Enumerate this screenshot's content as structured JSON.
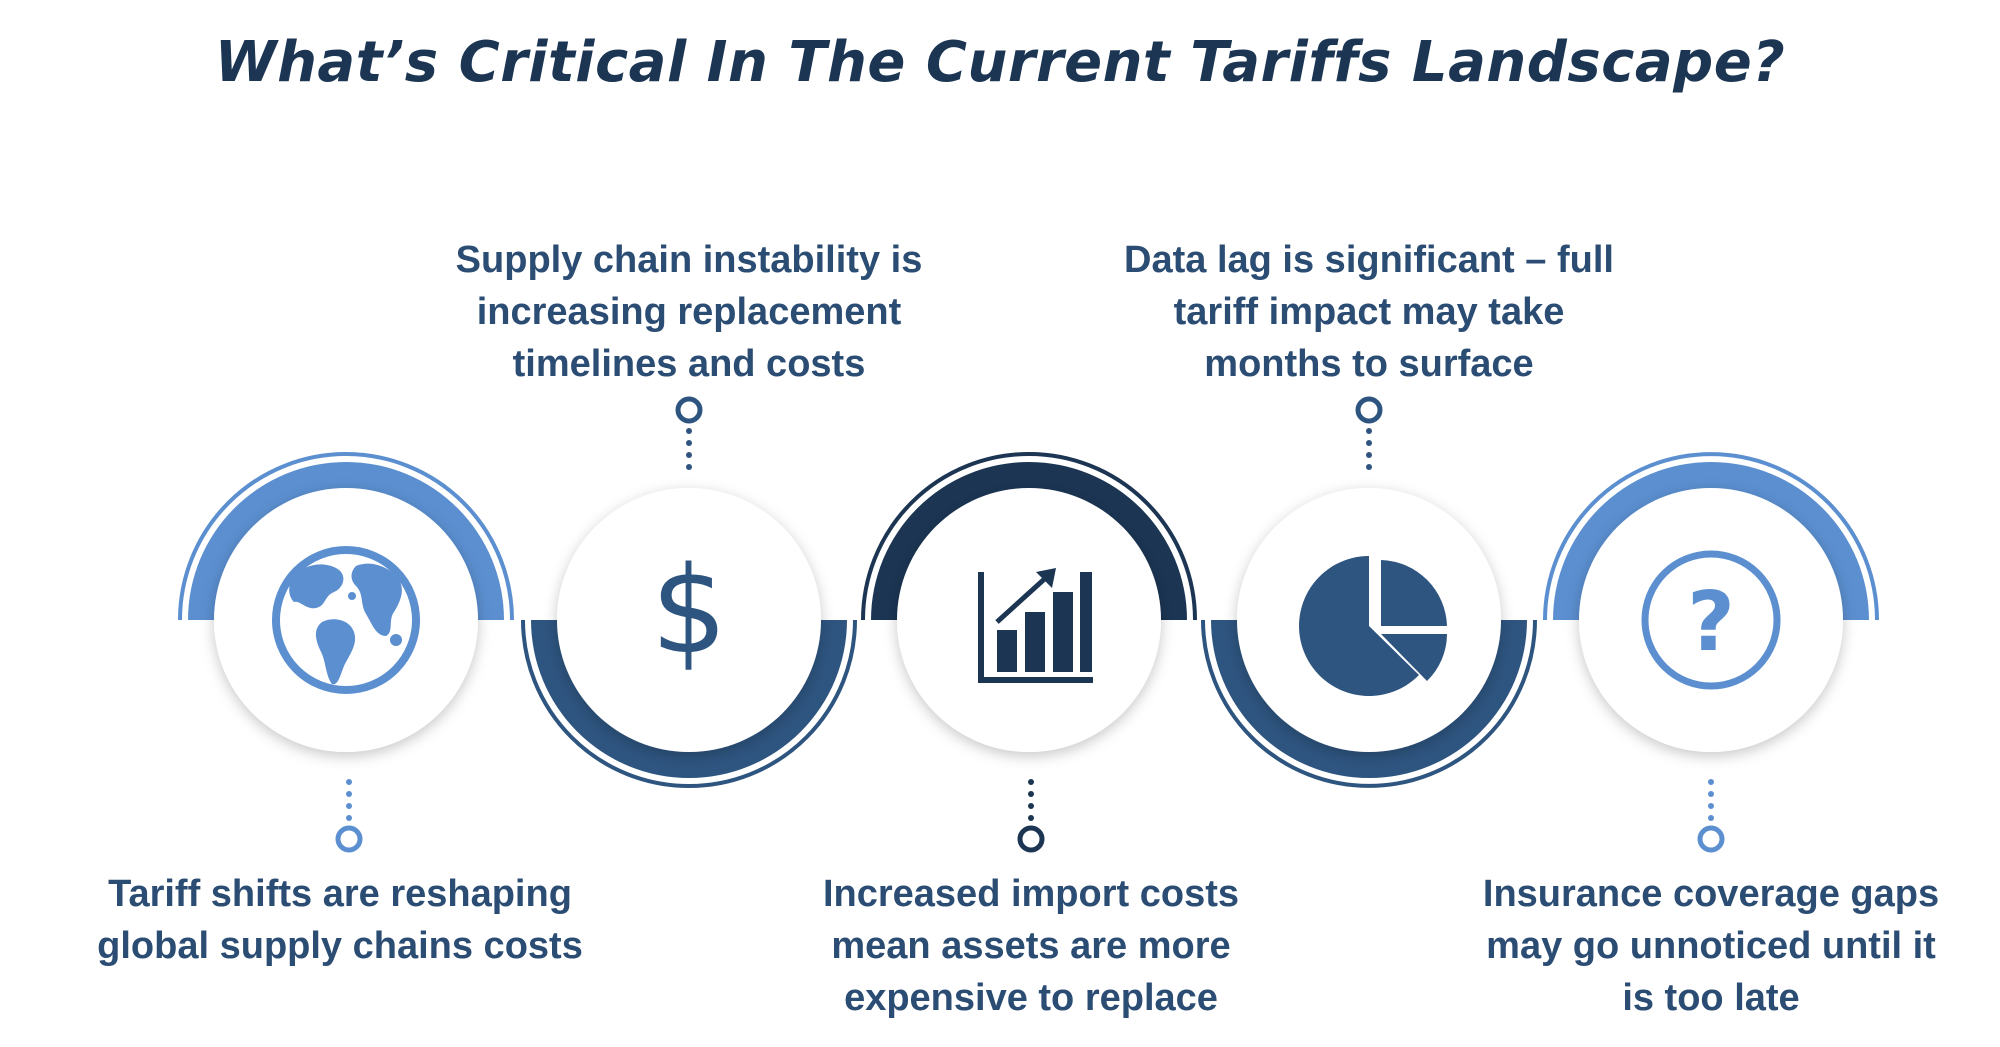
{
  "title": "What’s Critical In The Current Tariffs Landscape?",
  "colors": {
    "light_blue": "#5b8fd0",
    "mid_blue": "#2e5580",
    "dark_navy": "#1b3553",
    "text": "#2b4c73"
  },
  "items": [
    {
      "icon": "globe-icon",
      "label_lines": [
        "Tariff shifts are reshaping",
        "global supply chains costs"
      ]
    },
    {
      "icon": "dollar-icon",
      "label_lines": [
        "Supply chain instability is",
        "increasing replacement",
        "timelines and costs"
      ]
    },
    {
      "icon": "bar-chart-icon",
      "label_lines": [
        "Increased import costs",
        "mean assets are more",
        "expensive to replace"
      ]
    },
    {
      "icon": "pie-chart-icon",
      "label_lines": [
        "Data lag is significant – full",
        "tariff impact may take",
        "months to surface"
      ]
    },
    {
      "icon": "question-icon",
      "label_lines": [
        "Insurance coverage gaps",
        "may go unnoticed until it",
        "is too late"
      ]
    }
  ]
}
